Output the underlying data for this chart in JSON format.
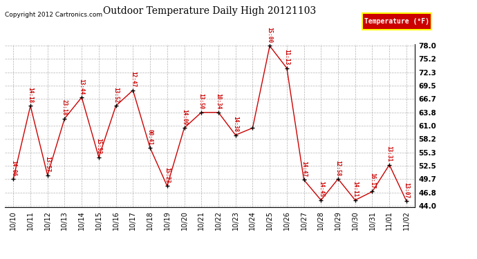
{
  "title": "Outdoor Temperature Daily High 20121103",
  "copyright": "Copyright 2012 Cartronics.com",
  "legend_label": "Temperature (°F)",
  "dates": [
    "10/10",
    "10/11",
    "10/12",
    "10/13",
    "10/14",
    "10/15",
    "10/16",
    "10/17",
    "10/18",
    "10/19",
    "10/20",
    "10/21",
    "10/22",
    "10/23",
    "10/24",
    "10/25",
    "10/26",
    "10/27",
    "10/28",
    "10/29",
    "10/30",
    "10/31",
    "11/01",
    "11/02"
  ],
  "temps": [
    49.7,
    65.2,
    50.5,
    62.5,
    67.0,
    54.3,
    65.2,
    68.5,
    56.3,
    48.2,
    60.5,
    63.8,
    63.8,
    59.0,
    60.5,
    77.9,
    73.2,
    49.5,
    45.2,
    49.7,
    45.2,
    47.0,
    52.7,
    45.0
  ],
  "time_labels": [
    "14:06",
    "14:18",
    "13:57",
    "23:18",
    "13:44",
    "15:52",
    "13:52",
    "12:47",
    "00:41",
    "15:23",
    "14:09",
    "13:50",
    "10:34",
    "14:38",
    "",
    "15:00",
    "11:13",
    "14:47",
    "14:45",
    "12:58",
    "14:11",
    "16:17",
    "13:31",
    "13:07"
  ],
  "peak_label_idx": 15,
  "line_color": "#cc0000",
  "marker_color": "#000000",
  "label_color": "#cc0000",
  "background_color": "#ffffff",
  "grid_color": "#aaaaaa",
  "ylim_min": 44.0,
  "ylim_max": 78.0,
  "ytick_values": [
    44.0,
    46.8,
    49.7,
    52.5,
    55.3,
    58.2,
    61.0,
    63.8,
    66.7,
    69.5,
    72.3,
    75.2,
    78.0
  ],
  "legend_bg": "#cc0000",
  "legend_text_color": "#ffffff",
  "legend_border": "#ffff00"
}
